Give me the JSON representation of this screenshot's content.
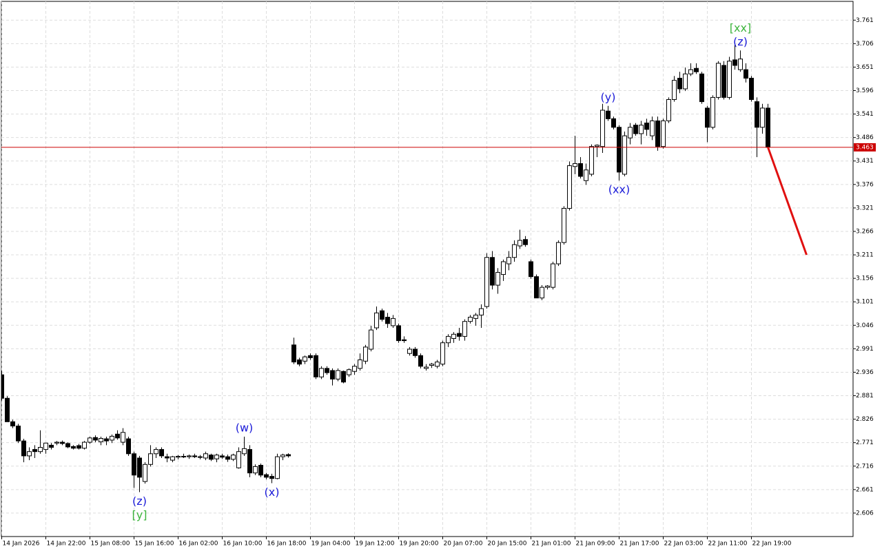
{
  "chart_data": {
    "type": "candlestick",
    "categories": [
      "14 Jan 2026",
      null,
      null,
      null,
      null,
      null,
      null,
      null,
      "14 Jan 22:00",
      null,
      null,
      null,
      null,
      null,
      null,
      null,
      "15 Jan 08:00",
      null,
      null,
      null,
      null,
      null,
      null,
      null,
      "15 Jan 16:00",
      null,
      null,
      null,
      null,
      null,
      null,
      null,
      "16 Jan 02:00",
      null,
      null,
      null,
      null,
      null,
      null,
      null,
      "16 Jan 10:00",
      null,
      null,
      null,
      null,
      null,
      null,
      null,
      "16 Jan 18:00",
      null,
      null,
      null,
      null,
      null,
      null,
      null,
      "19 Jan 04:00",
      null,
      null,
      null,
      null,
      null,
      null,
      null,
      "19 Jan 12:00",
      null,
      null,
      null,
      null,
      null,
      null,
      null,
      "19 Jan 20:00",
      null,
      null,
      null,
      null,
      null,
      null,
      null,
      "20 Jan 07:00",
      null,
      null,
      null,
      null,
      null,
      null,
      null,
      "20 Jan 15:00",
      null,
      null,
      null,
      null,
      null,
      null,
      null,
      "21 Jan 01:00",
      null,
      null,
      null,
      null,
      null,
      null,
      null,
      "21 Jan 09:00",
      null,
      null,
      null,
      null,
      null,
      null,
      null,
      "21 Jan 17:00",
      null,
      null,
      null,
      null,
      null,
      null,
      null,
      "22 Jan 03:00",
      null,
      null,
      null,
      null,
      null,
      null,
      null,
      "22 Jan 11:00",
      null,
      null,
      null,
      null,
      null,
      null,
      null,
      "22 Jan 19:00",
      null,
      null,
      null
    ],
    "open": [
      2.93,
      2.875,
      2.82,
      2.81,
      2.775,
      2.74,
      2.755,
      2.75,
      2.755,
      2.765,
      2.77,
      2.772,
      2.769,
      2.762,
      2.764,
      2.758,
      2.772,
      2.783,
      2.773,
      2.78,
      2.777,
      2.791,
      2.772,
      2.78,
      2.745,
      2.735,
      2.68,
      2.72,
      2.745,
      2.755,
      2.738,
      2.73,
      2.737,
      2.739,
      2.738,
      2.74,
      2.738,
      2.735,
      2.742,
      2.733,
      2.74,
      2.738,
      2.732,
      2.712,
      2.745,
      2.755,
      2.7,
      2.718,
      2.696,
      2.692,
      2.687,
      2.738,
      2.743,
      3.0,
      2.965,
      2.962,
      2.975,
      2.975,
      2.925,
      2.945,
      2.94,
      2.92,
      2.938,
      2.93,
      2.938,
      2.945,
      2.962,
      2.99,
      3.04,
      3.08,
      3.065,
      3.045,
      3.045,
      3.012,
      2.98,
      2.99,
      2.975,
      2.945,
      2.952,
      2.95,
      2.955,
      3.005,
      3.015,
      3.027,
      3.02,
      3.055,
      3.062,
      3.07,
      3.09,
      3.205,
      3.14,
      3.165,
      3.19,
      3.205,
      3.232,
      3.247,
      3.195,
      3.16,
      3.11,
      3.135,
      3.135,
      3.19,
      3.24,
      3.32,
      3.418,
      3.425,
      3.385,
      3.4,
      3.465,
      3.465,
      3.548,
      3.53,
      3.51,
      3.4,
      3.485,
      3.515,
      3.495,
      3.52,
      3.49,
      3.525,
      3.465,
      3.525,
      3.575,
      3.625,
      3.6,
      3.635,
      3.648,
      3.635,
      3.555,
      3.51,
      3.58,
      3.655,
      3.58,
      3.668,
      3.645,
      3.645,
      3.625,
      3.57,
      3.51,
      3.555
    ],
    "high": [
      2.94,
      2.88,
      2.825,
      2.815,
      2.78,
      2.76,
      2.765,
      2.8,
      2.77,
      2.77,
      2.775,
      2.776,
      2.772,
      2.765,
      2.768,
      2.775,
      2.785,
      2.788,
      2.785,
      2.785,
      2.79,
      2.8,
      2.805,
      2.785,
      2.75,
      2.74,
      2.725,
      2.765,
      2.76,
      2.76,
      2.745,
      2.74,
      2.742,
      2.745,
      2.743,
      2.745,
      2.742,
      2.75,
      2.745,
      2.745,
      2.745,
      2.743,
      2.745,
      2.76,
      2.785,
      2.765,
      2.72,
      2.722,
      2.7,
      2.698,
      2.745,
      2.745,
      2.746,
      3.017,
      2.97,
      2.975,
      2.98,
      2.98,
      2.95,
      2.95,
      2.945,
      2.945,
      2.94,
      2.945,
      2.955,
      2.98,
      3.0,
      3.045,
      3.09,
      3.085,
      3.075,
      3.07,
      3.05,
      3.02,
      2.995,
      2.995,
      2.98,
      2.955,
      2.958,
      2.965,
      3.01,
      3.025,
      3.03,
      3.04,
      3.06,
      3.07,
      3.075,
      3.095,
      3.215,
      3.22,
      3.18,
      3.2,
      3.22,
      3.245,
      3.27,
      3.255,
      3.2,
      3.165,
      3.14,
      3.14,
      3.195,
      3.245,
      3.325,
      3.43,
      3.49,
      3.44,
      3.425,
      3.47,
      3.47,
      3.565,
      3.56,
      3.535,
      3.515,
      3.5,
      3.52,
      3.52,
      3.525,
      3.53,
      3.535,
      3.535,
      3.53,
      3.58,
      3.63,
      3.64,
      3.65,
      3.66,
      3.66,
      3.64,
      3.56,
      3.585,
      3.665,
      3.665,
      3.675,
      3.705,
      3.69,
      3.66,
      3.63,
      3.58,
      3.565,
      3.565
    ],
    "low": [
      2.87,
      2.82,
      2.805,
      2.77,
      2.725,
      2.73,
      2.735,
      2.745,
      2.745,
      2.755,
      2.765,
      2.765,
      2.758,
      2.755,
      2.755,
      2.755,
      2.768,
      2.772,
      2.765,
      2.765,
      2.77,
      2.778,
      2.765,
      2.74,
      2.665,
      2.655,
      2.675,
      2.715,
      2.735,
      2.735,
      2.725,
      2.725,
      2.732,
      2.735,
      2.733,
      2.735,
      2.732,
      2.73,
      2.728,
      2.725,
      2.733,
      2.726,
      2.728,
      2.71,
      2.74,
      2.69,
      2.695,
      2.69,
      2.685,
      2.676,
      2.685,
      2.73,
      2.736,
      2.955,
      2.95,
      2.955,
      2.965,
      2.92,
      2.92,
      2.93,
      2.905,
      2.915,
      2.91,
      2.925,
      2.93,
      2.94,
      2.955,
      2.985,
      3.035,
      3.055,
      3.04,
      3.04,
      3.005,
      3.005,
      2.975,
      2.97,
      2.945,
      2.94,
      2.946,
      2.945,
      2.95,
      2.995,
      3.005,
      3.01,
      3.01,
      3.05,
      3.045,
      3.04,
      3.085,
      3.13,
      3.12,
      3.15,
      3.175,
      3.195,
      3.225,
      3.23,
      3.155,
      3.11,
      3.105,
      3.13,
      3.13,
      3.185,
      3.235,
      3.315,
      3.4,
      3.39,
      3.375,
      3.395,
      3.44,
      3.45,
      3.525,
      3.505,
      3.385,
      3.395,
      3.47,
      3.49,
      3.47,
      3.49,
      3.48,
      3.455,
      3.46,
      3.52,
      3.57,
      3.59,
      3.595,
      3.63,
      3.635,
      3.565,
      3.475,
      3.505,
      3.575,
      3.575,
      3.575,
      3.645,
      3.64,
      3.615,
      3.57,
      3.44,
      3.495,
      3.463
    ],
    "close": [
      2.875,
      2.82,
      2.81,
      2.775,
      2.74,
      2.75,
      2.75,
      2.76,
      2.77,
      2.76,
      2.772,
      2.769,
      2.761,
      2.758,
      2.758,
      2.772,
      2.782,
      2.777,
      2.781,
      2.775,
      2.786,
      2.782,
      2.795,
      2.745,
      2.695,
      2.69,
      2.72,
      2.745,
      2.755,
      2.74,
      2.735,
      2.738,
      2.739,
      2.738,
      2.74,
      2.738,
      2.737,
      2.745,
      2.732,
      2.742,
      2.737,
      2.732,
      2.742,
      2.75,
      2.757,
      2.7,
      2.715,
      2.695,
      2.69,
      2.687,
      2.738,
      2.742,
      2.74,
      2.96,
      2.955,
      2.972,
      2.97,
      2.925,
      2.945,
      2.935,
      2.92,
      2.94,
      2.913,
      2.942,
      2.95,
      2.965,
      2.995,
      3.035,
      3.075,
      3.06,
      3.05,
      3.062,
      3.01,
      3.01,
      2.99,
      2.975,
      2.95,
      2.948,
      2.955,
      2.96,
      3.005,
      3.02,
      3.025,
      3.02,
      3.055,
      3.065,
      3.07,
      3.085,
      3.205,
      3.14,
      3.17,
      3.195,
      3.205,
      3.235,
      3.245,
      3.235,
      3.16,
      3.11,
      3.135,
      3.138,
      3.19,
      3.24,
      3.32,
      3.42,
      3.425,
      3.395,
      3.41,
      3.465,
      3.468,
      3.55,
      3.53,
      3.51,
      3.405,
      3.49,
      3.51,
      3.495,
      3.515,
      3.505,
      3.525,
      3.465,
      3.525,
      3.575,
      3.62,
      3.6,
      3.635,
      3.645,
      3.64,
      3.57,
      3.51,
      3.58,
      3.66,
      3.58,
      3.665,
      3.655,
      3.67,
      3.625,
      3.575,
      3.51,
      3.555,
      3.463
    ],
    "ylim": [
      2.551,
      3.805
    ],
    "yticks": [
      2.606,
      2.661,
      2.716,
      2.771,
      2.826,
      2.881,
      2.936,
      2.991,
      3.046,
      3.101,
      3.156,
      3.211,
      3.266,
      3.321,
      3.376,
      3.431,
      3.486,
      3.541,
      3.596,
      3.651,
      3.706,
      3.761
    ],
    "grid": true,
    "current_price": 3.463,
    "current_price_color": "#cc0000",
    "forecast": {
      "values": [
        3.463,
        3.211
      ],
      "color": "#e01010"
    },
    "annotations": [
      {
        "candle": 25,
        "side": "below",
        "labels": [
          {
            "text": "(z)",
            "color": "#1a1ad8"
          },
          {
            "text": "[y]",
            "color": "#3cb43c"
          }
        ]
      },
      {
        "candle": 44,
        "side": "above",
        "labels": [
          {
            "text": "(w)",
            "color": "#1a1ad8"
          }
        ]
      },
      {
        "candle": 49,
        "side": "below",
        "labels": [
          {
            "text": "(x)",
            "color": "#1a1ad8"
          }
        ]
      },
      {
        "candle": 110,
        "side": "above",
        "labels": [
          {
            "text": "(y)",
            "color": "#1a1ad8"
          }
        ]
      },
      {
        "candle": 112,
        "side": "below",
        "labels": [
          {
            "text": "(xx)",
            "color": "#1a1ad8"
          }
        ]
      },
      {
        "candle": 134,
        "side": "above",
        "labels": [
          {
            "text": "(z)",
            "color": "#1a1ad8"
          },
          {
            "text": "[xx]",
            "color": "#3cb43c"
          }
        ]
      }
    ]
  }
}
